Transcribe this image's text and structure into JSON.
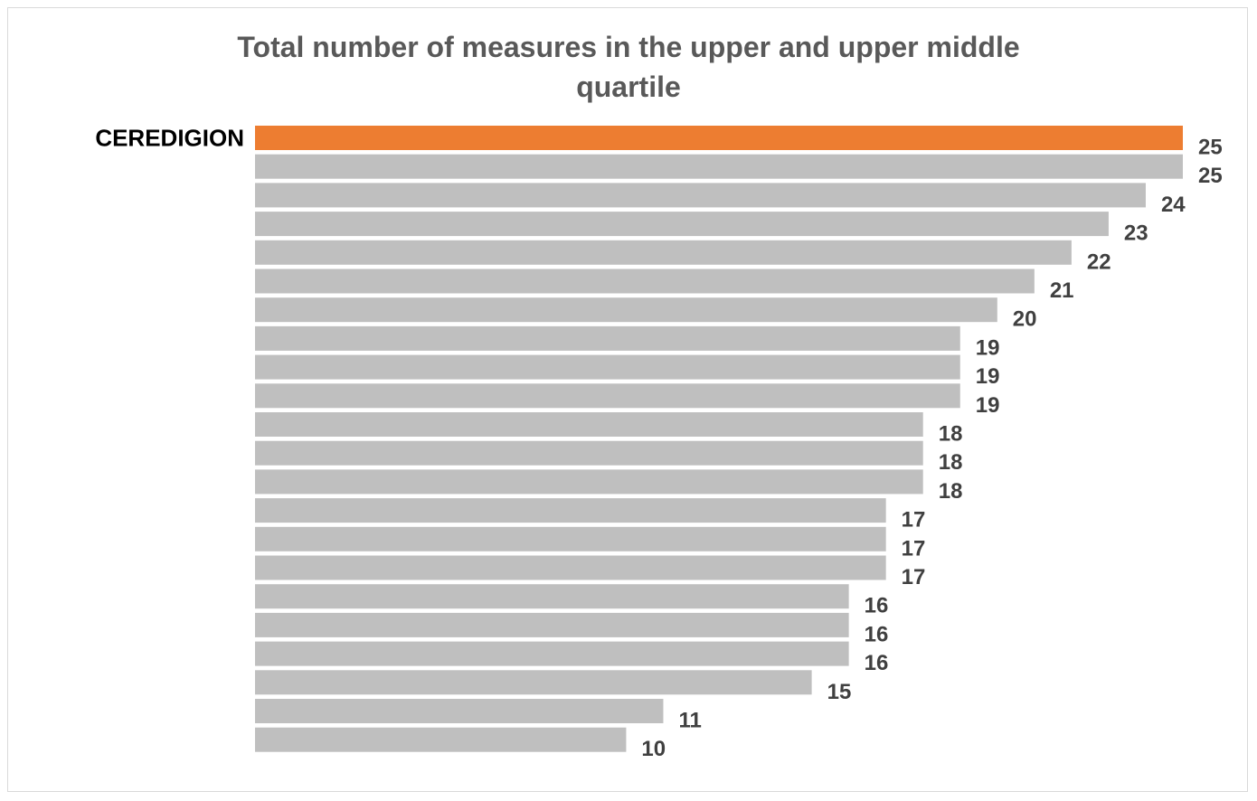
{
  "chart_data": {
    "type": "bar",
    "orientation": "horizontal",
    "title_lines": [
      "Total number of measures in the upper and upper middle",
      "quartile"
    ],
    "categories": [
      "CEREDIGION",
      "",
      "",
      "",
      "",
      "",
      "",
      "",
      "",
      "",
      "",
      "",
      "",
      "",
      "",
      "",
      "",
      "",
      "",
      "",
      "",
      ""
    ],
    "values": [
      25,
      25,
      24,
      23,
      22,
      21,
      20,
      19,
      19,
      19,
      18,
      18,
      18,
      17,
      17,
      17,
      16,
      16,
      16,
      15,
      11,
      10
    ],
    "highlight_index": 0,
    "xlim": [
      0,
      25
    ],
    "grid": false,
    "legend": "none",
    "colors": {
      "highlight": "#ED7D31",
      "default": "#BFBFBF",
      "data_label": "#404040",
      "title": "#595959"
    }
  }
}
